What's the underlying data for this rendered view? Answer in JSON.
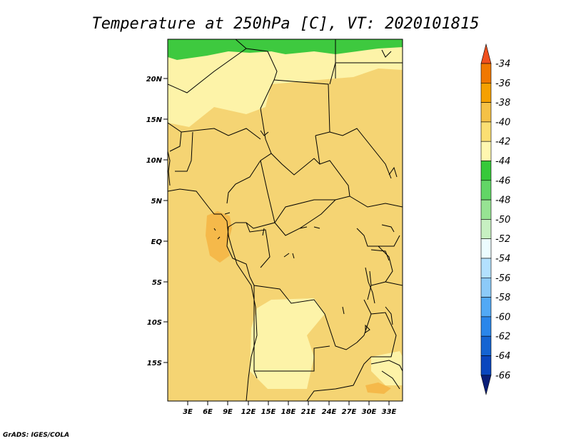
{
  "title": "Temperature at 250hPa [C], VT: 2020101815",
  "credit": "GrADS: IGES/COLA",
  "map": {
    "lat_labels": [
      "20N",
      "15N",
      "10N",
      "5N",
      "EQ",
      "5S",
      "10S",
      "15S"
    ],
    "lon_labels": [
      "3E",
      "6E",
      "9E",
      "12E",
      "15E",
      "18E",
      "21E",
      "24E",
      "27E",
      "30E",
      "33E"
    ],
    "lat_range": [
      -19.5,
      24.5
    ],
    "lon_range": [
      0,
      35
    ]
  },
  "colorbar": {
    "labels": [
      "-34",
      "-36",
      "-38",
      "-40",
      "-42",
      "-44",
      "-46",
      "-48",
      "-50",
      "-52",
      "-54",
      "-56",
      "-58",
      "-60",
      "-62",
      "-64",
      "-66"
    ],
    "colors": [
      "#f0501e",
      "#f07800",
      "#f5a000",
      "#f5c146",
      "#fbdf73",
      "#fff7b0",
      "#36c93a",
      "#62d666",
      "#97e393",
      "#c7f0c2",
      "#ecfcff",
      "#b3e1fe",
      "#8ccaf8",
      "#52a9f5",
      "#2a86ea",
      "#1464d2",
      "#0a46be",
      "#0a1e78"
    ]
  },
  "legend_colors": {
    "field_minus_40": "#f5d473",
    "field_minus_42": "#fdf3a8",
    "field_minus_38": "#f5b94a",
    "field_minus_44": "#3ec93f"
  }
}
